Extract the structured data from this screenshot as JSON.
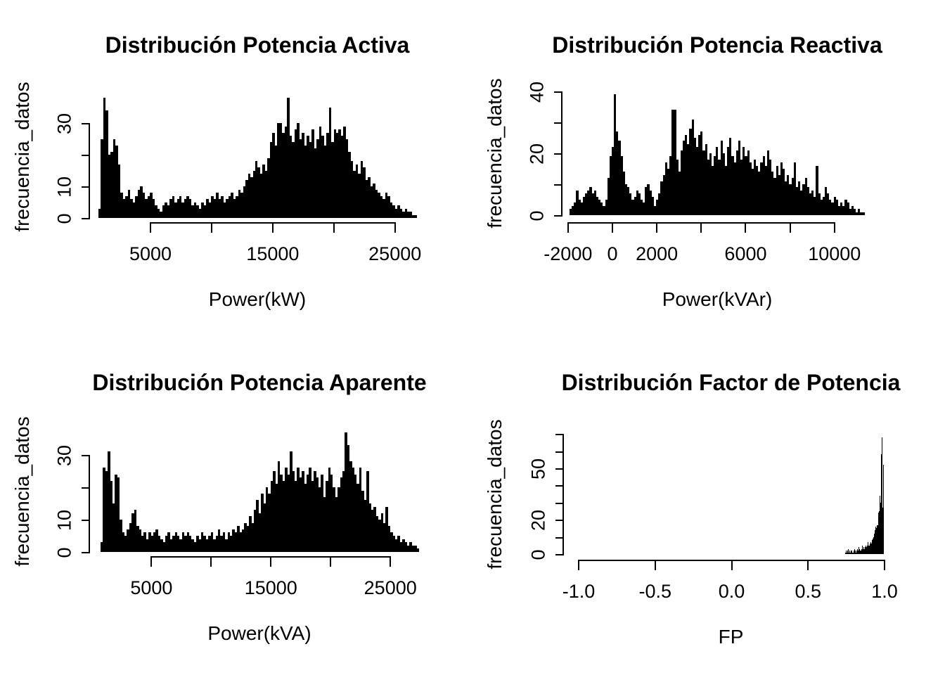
{
  "figure": {
    "background": "#ffffff",
    "bar_color": "#000000",
    "text_color": "#000000",
    "grid": false,
    "legend": null
  },
  "chart_data": [
    {
      "id": "activa",
      "type": "bar",
      "title": "Distribución Potencia Activa",
      "xlabel": "Power(kW)",
      "ylabel": "frecuencia_datos",
      "xlim": [
        800,
        26800
      ],
      "ylim": [
        0,
        38.5
      ],
      "bin_start": 800,
      "bin_width": 200,
      "x_ticks": [
        {
          "v": 5000,
          "label": "5000"
        },
        {
          "v": 10000,
          "label": ""
        },
        {
          "v": 15000,
          "label": "15000"
        },
        {
          "v": 20000,
          "label": ""
        },
        {
          "v": 25000,
          "label": "25000"
        }
      ],
      "y_ticks": [
        {
          "v": 0,
          "label": "0"
        },
        {
          "v": 10,
          "label": "10"
        },
        {
          "v": 20,
          "label": ""
        },
        {
          "v": 30,
          "label": "30"
        }
      ],
      "values": [
        3,
        25,
        38,
        34,
        20,
        21,
        25,
        23,
        17,
        8,
        6,
        7,
        9,
        6,
        5,
        7,
        9,
        10,
        8,
        6,
        7,
        8,
        6,
        4,
        3,
        2,
        4,
        5,
        4,
        6,
        7,
        5,
        6,
        7,
        5,
        6,
        7,
        6,
        4,
        5,
        4,
        3,
        5,
        4,
        6,
        5,
        7,
        6,
        8,
        6,
        7,
        5,
        6,
        7,
        8,
        6,
        7,
        9,
        8,
        10,
        12,
        14,
        13,
        15,
        18,
        16,
        14,
        17,
        15,
        19,
        24,
        27,
        23,
        30,
        30,
        27,
        29,
        38,
        26,
        24,
        28,
        30,
        25,
        27,
        23,
        26,
        24,
        28,
        22,
        25,
        29,
        26,
        23,
        27,
        35,
        24,
        28,
        27,
        28,
        26,
        29,
        25,
        21,
        18,
        15,
        17,
        14,
        18,
        16,
        12,
        13,
        10,
        11,
        9,
        8,
        7,
        6,
        8,
        7,
        5,
        4,
        3,
        4,
        3,
        2,
        3,
        2,
        2,
        1,
        1
      ]
    },
    {
      "id": "reactiva",
      "type": "bar",
      "title": "Distribución Potencia Reactiva",
      "xlabel": "Power(kVAr)",
      "ylabel": "frecuencia_datos",
      "xlim": [
        -1900,
        11400
      ],
      "ylim": [
        0,
        40
      ],
      "bin_start": -1900,
      "bin_width": 100,
      "x_ticks": [
        {
          "v": -2000,
          "label": "-2000"
        },
        {
          "v": 0,
          "label": "0"
        },
        {
          "v": 2000,
          "label": "2000"
        },
        {
          "v": 4000,
          "label": ""
        },
        {
          "v": 6000,
          "label": "6000"
        },
        {
          "v": 8000,
          "label": ""
        },
        {
          "v": 10000,
          "label": "10000"
        }
      ],
      "y_ticks": [
        {
          "v": 0,
          "label": "0"
        },
        {
          "v": 10,
          "label": ""
        },
        {
          "v": 20,
          "label": "20"
        },
        {
          "v": 30,
          "label": ""
        },
        {
          "v": 40,
          "label": "40"
        }
      ],
      "values": [
        2,
        3,
        4,
        8,
        5,
        4,
        6,
        7,
        8,
        9,
        7,
        8,
        6,
        5,
        4,
        3,
        5,
        12,
        19,
        22,
        39,
        27,
        24,
        19,
        14,
        10,
        9,
        7,
        5,
        6,
        8,
        7,
        5,
        4,
        9,
        10,
        8,
        6,
        3,
        5,
        7,
        11,
        13,
        17,
        15,
        19,
        34,
        34,
        18,
        14,
        21,
        24,
        26,
        23,
        28,
        31,
        25,
        22,
        26,
        27,
        21,
        23,
        18,
        20,
        16,
        19,
        22,
        18,
        24,
        20,
        16,
        22,
        25,
        19,
        17,
        21,
        24,
        18,
        22,
        19,
        21,
        17,
        15,
        18,
        16,
        14,
        17,
        19,
        16,
        21,
        18,
        14,
        12,
        16,
        13,
        17,
        15,
        11,
        13,
        10,
        12,
        17,
        9,
        11,
        8,
        10,
        12,
        9,
        7,
        8,
        6,
        16,
        7,
        5,
        6,
        9,
        7,
        5,
        4,
        6,
        5,
        3,
        4,
        3,
        5,
        4,
        2,
        3,
        2,
        1,
        2,
        1,
        1
      ]
    },
    {
      "id": "aparente",
      "type": "bar",
      "title": "Distribución Potencia Aparente",
      "xlabel": "Power(kVA)",
      "ylabel": "frecuencia_datos",
      "xlim": [
        800,
        27400
      ],
      "ylim": [
        0,
        37.5
      ],
      "bin_start": 800,
      "bin_width": 200,
      "x_ticks": [
        {
          "v": 5000,
          "label": "5000"
        },
        {
          "v": 10000,
          "label": ""
        },
        {
          "v": 15000,
          "label": "15000"
        },
        {
          "v": 20000,
          "label": ""
        },
        {
          "v": 25000,
          "label": "25000"
        }
      ],
      "y_ticks": [
        {
          "v": 0,
          "label": "0"
        },
        {
          "v": 10,
          "label": "10"
        },
        {
          "v": 20,
          "label": ""
        },
        {
          "v": 30,
          "label": "30"
        }
      ],
      "values": [
        3,
        26,
        25,
        31,
        22,
        15,
        24,
        23,
        10,
        6,
        5,
        7,
        9,
        12,
        13,
        8,
        7,
        5,
        6,
        4,
        6,
        5,
        6,
        7,
        5,
        4,
        3,
        5,
        6,
        4,
        5,
        6,
        5,
        4,
        6,
        5,
        6,
        5,
        4,
        3,
        5,
        4,
        6,
        5,
        4,
        5,
        6,
        4,
        5,
        7,
        5,
        6,
        4,
        6,
        5,
        7,
        6,
        8,
        6,
        7,
        9,
        8,
        11,
        9,
        13,
        16,
        12,
        18,
        15,
        20,
        18,
        22,
        25,
        21,
        28,
        24,
        22,
        26,
        24,
        31,
        25,
        22,
        26,
        23,
        25,
        21,
        24,
        26,
        22,
        25,
        23,
        20,
        24,
        17,
        22,
        26,
        24,
        20,
        17,
        20,
        23,
        25,
        37,
        33,
        28,
        26,
        24,
        21,
        26,
        19,
        16,
        25,
        15,
        13,
        14,
        11,
        10,
        12,
        9,
        14,
        8,
        6,
        5,
        4,
        5,
        3,
        4,
        3,
        2,
        3,
        2,
        2,
        1
      ]
    },
    {
      "id": "fp",
      "type": "bar",
      "title": "Distribución Factor de Potencia",
      "xlabel": "FP",
      "ylabel": "frecuencia_datos",
      "xlim": [
        -1.0,
        1.0
      ],
      "ylim": [
        0,
        70
      ],
      "bin_start": 0.745,
      "bin_width": 0.005,
      "x_ticks": [
        {
          "v": -1.0,
          "label": "-1.0"
        },
        {
          "v": -0.5,
          "label": "-0.5"
        },
        {
          "v": 0.0,
          "label": "0.0"
        },
        {
          "v": 0.5,
          "label": "0.5"
        },
        {
          "v": 1.0,
          "label": "1.0"
        }
      ],
      "y_ticks": [
        {
          "v": 0,
          "label": "0"
        },
        {
          "v": 10,
          "label": ""
        },
        {
          "v": 20,
          "label": "20"
        },
        {
          "v": 30,
          "label": ""
        },
        {
          "v": 40,
          "label": ""
        },
        {
          "v": 50,
          "label": "50"
        },
        {
          "v": 60,
          "label": ""
        },
        {
          "v": 70,
          "label": ""
        }
      ],
      "values": [
        1,
        2,
        1,
        2,
        3,
        1,
        2,
        1,
        2,
        2,
        1,
        2,
        3,
        2,
        1,
        2,
        3,
        2,
        4,
        3,
        2,
        3,
        5,
        3,
        4,
        3,
        4,
        5,
        4,
        5,
        7,
        5,
        6,
        7,
        6,
        8,
        9,
        10,
        12,
        14,
        16,
        15,
        17,
        24,
        25,
        34,
        30,
        58,
        68,
        27,
        52
      ]
    }
  ]
}
